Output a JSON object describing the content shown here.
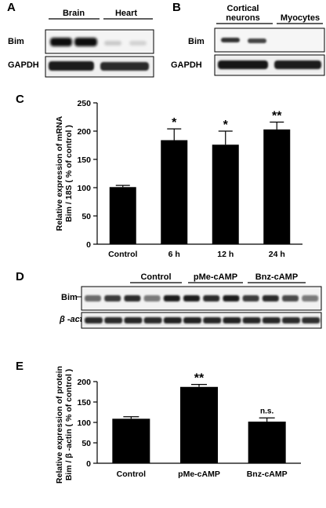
{
  "panel_a": {
    "letter": "A",
    "groups": [
      "Brain",
      "Heart"
    ],
    "rows": [
      "Bim",
      "GAPDH"
    ]
  },
  "panel_b": {
    "letter": "B",
    "groups": [
      "Cortical\nneurons",
      "Myocytes"
    ],
    "group1_line1": "Cortical",
    "group1_line2": "neurons",
    "group2": "Myocytes",
    "rows": [
      "Bim",
      "GAPDH"
    ]
  },
  "panel_d": {
    "letter": "D",
    "groups": [
      "Control",
      "pMe-cAMP",
      "Bnz-cAMP"
    ],
    "rows": [
      "Bim",
      "β -actin"
    ]
  },
  "chart_data": [
    {
      "panel": "C",
      "type": "bar",
      "categories": [
        "Control",
        "6 h",
        "12 h",
        "24 h"
      ],
      "values": [
        101,
        184,
        176,
        203
      ],
      "errors": [
        3,
        20,
        24,
        13
      ],
      "annotations": [
        "",
        "*",
        "*",
        "**"
      ],
      "ylabel_line1": "Relative expression of  mRNA",
      "ylabel_line2": "Bim / 18S ( % of control )",
      "ylim": [
        0,
        250
      ],
      "yticks": [
        0,
        50,
        100,
        150,
        200,
        250
      ],
      "grid": false,
      "color": "#000000"
    },
    {
      "panel": "E",
      "type": "bar",
      "categories": [
        "Control",
        "pMe-cAMP",
        "Bnz-cAMP"
      ],
      "values": [
        109,
        187,
        102
      ],
      "errors": [
        5,
        6,
        9
      ],
      "annotations": [
        "",
        "**",
        "n.s."
      ],
      "ylabel_line1": "Relative expression of  protein",
      "ylabel_line2": "Bim / β -actin ( % of control )",
      "ylim": [
        0,
        200
      ],
      "yticks": [
        0,
        50,
        100,
        150,
        200
      ],
      "grid": false,
      "color": "#000000"
    }
  ]
}
